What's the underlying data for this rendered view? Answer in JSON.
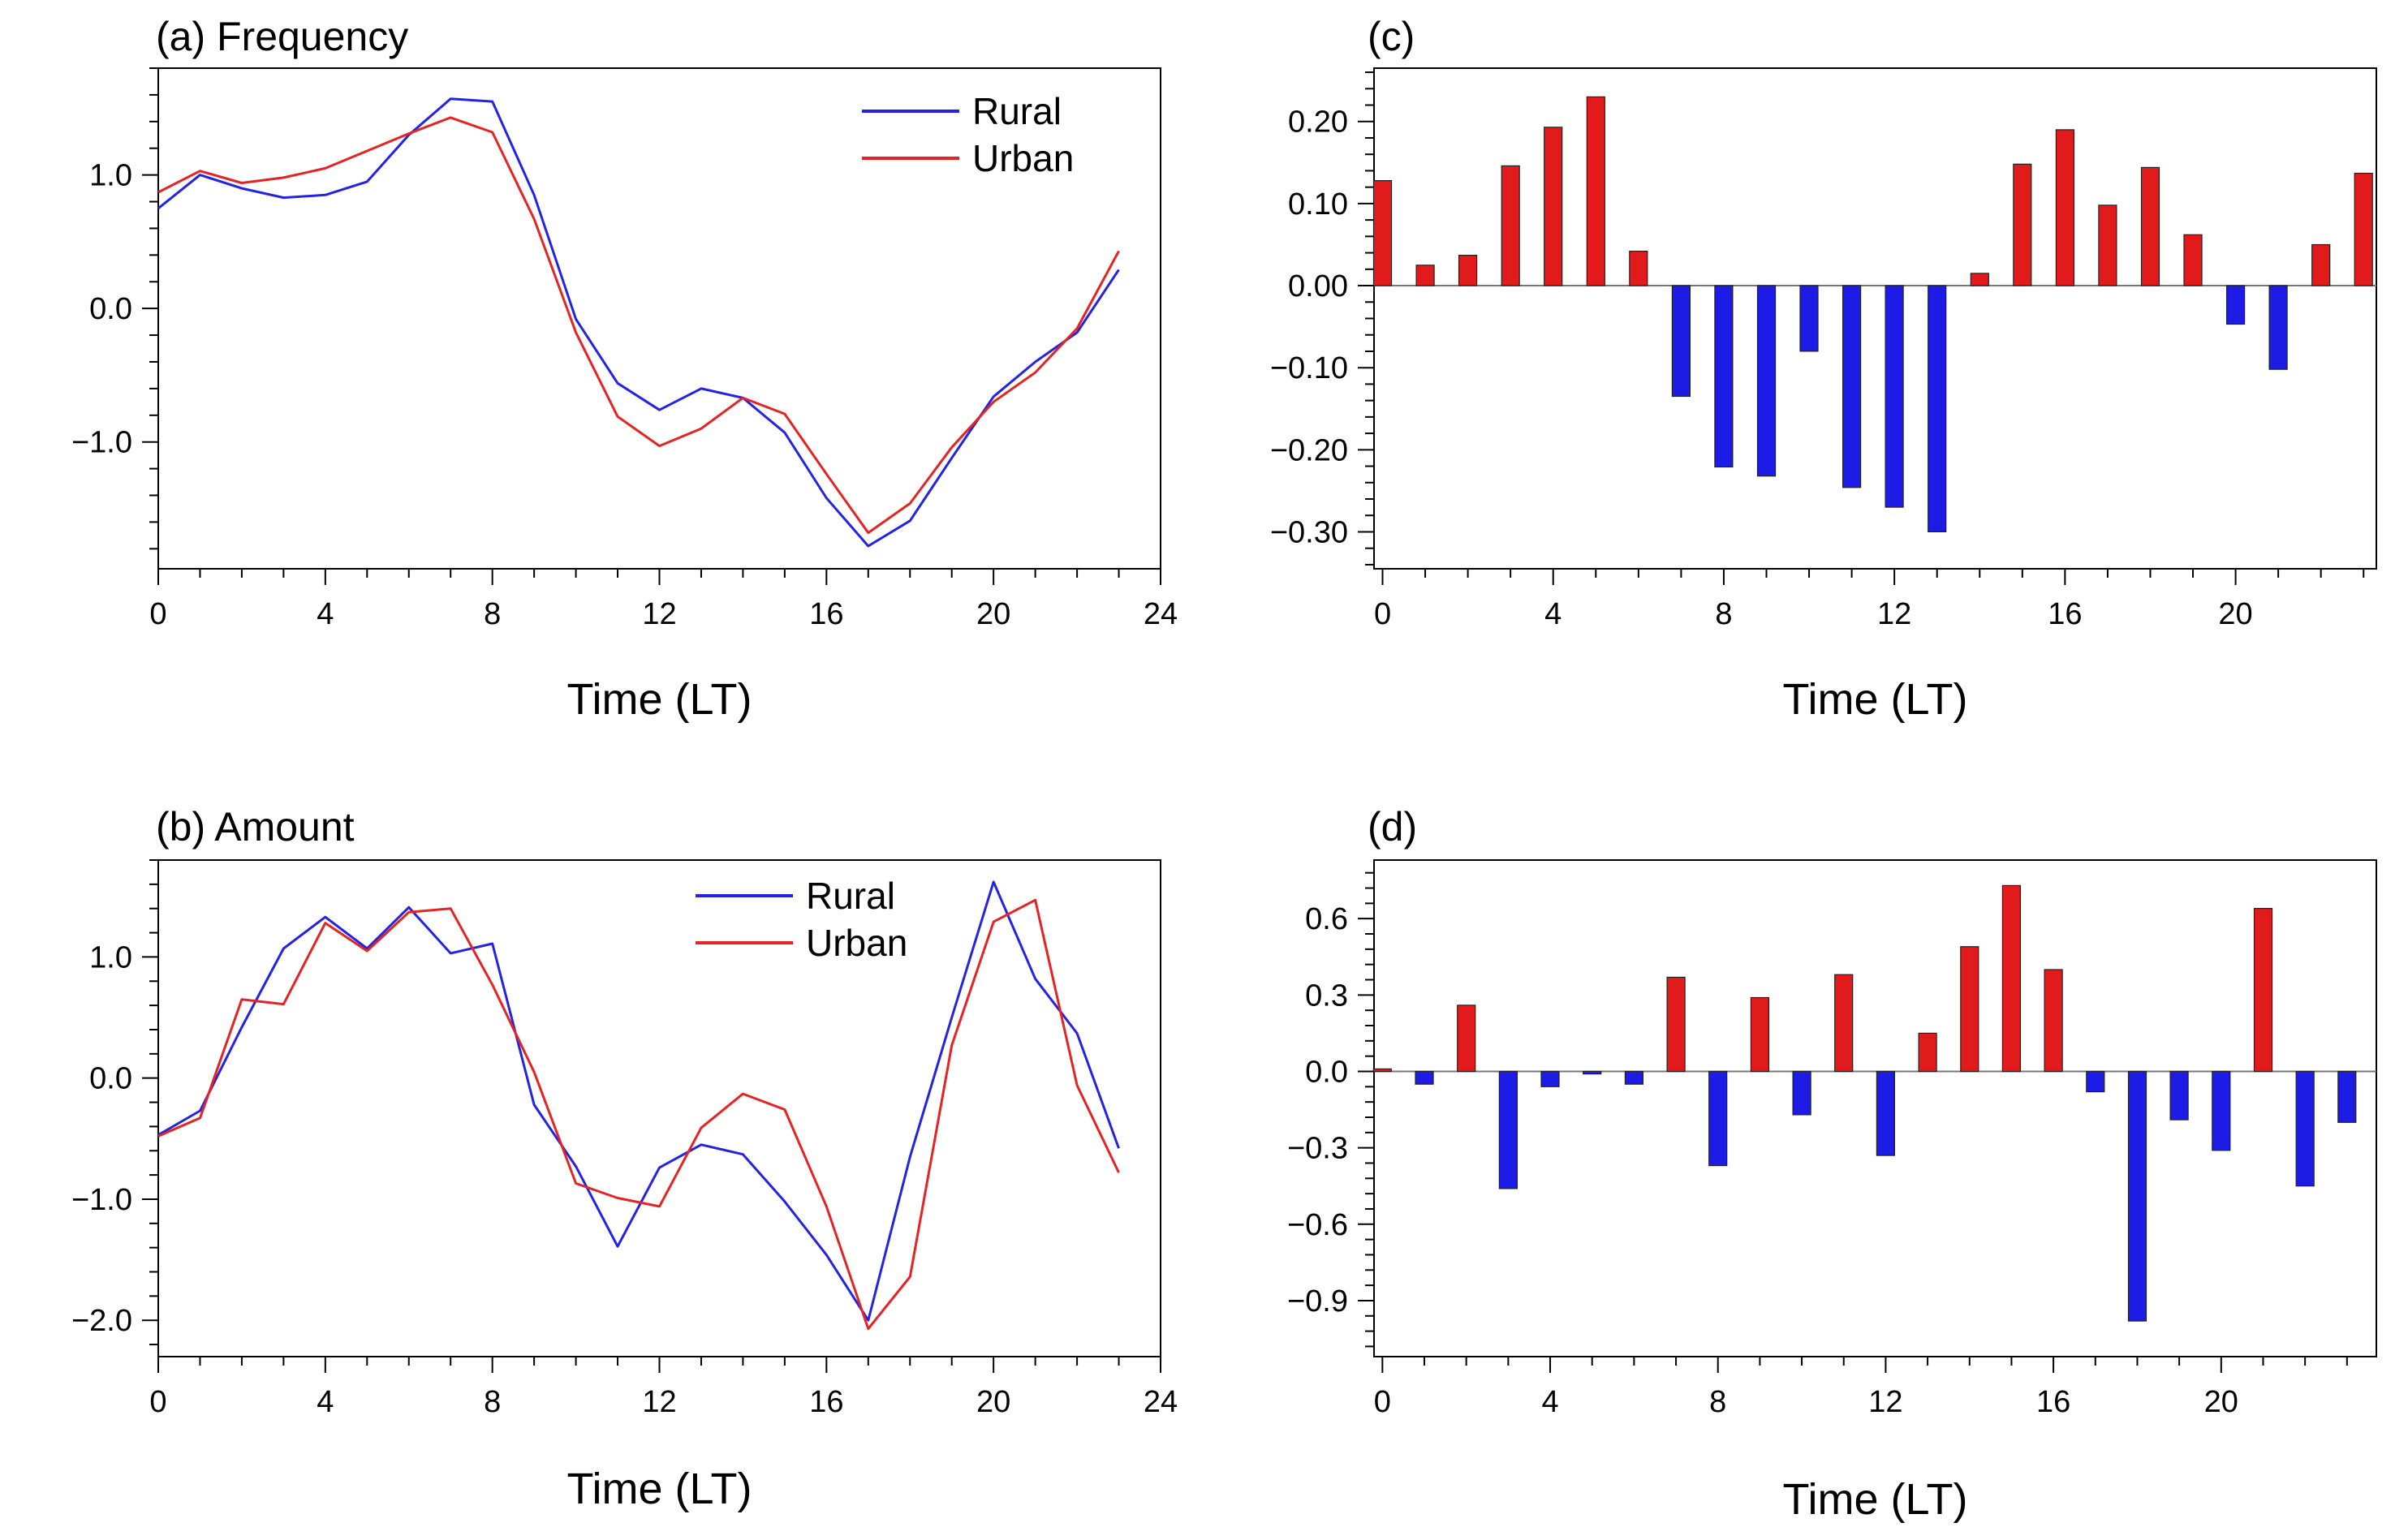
{
  "chart_data": [
    {
      "id": "a",
      "type": "line",
      "title": "(a) Frequency",
      "xlabel": "Time (LT)",
      "ylabel": "",
      "xlim": [
        0,
        24
      ],
      "ylim": [
        -1.95,
        1.8
      ],
      "xticks": [
        0,
        4,
        8,
        12,
        16,
        20,
        24
      ],
      "yticks": [
        1.0,
        0.0,
        -1.0
      ],
      "ytick_labels": [
        "1.0",
        "0.0",
        "−1.0"
      ],
      "x": [
        0,
        1,
        2,
        3,
        4,
        5,
        6,
        7,
        8,
        9,
        10,
        11,
        12,
        13,
        14,
        15,
        16,
        17,
        18,
        19,
        20,
        21,
        22,
        23
      ],
      "legend_position": "top-right",
      "series": [
        {
          "name": "Rural",
          "color": "#2323e6",
          "values": [
            0.75,
            1.0,
            0.9,
            0.83,
            0.85,
            0.95,
            1.3,
            1.57,
            1.55,
            0.85,
            -0.08,
            -0.56,
            -0.76,
            -0.6,
            -0.67,
            -0.93,
            -1.42,
            -1.78,
            -1.59,
            -1.12,
            -0.66,
            -0.4,
            -0.18,
            0.29
          ]
        },
        {
          "name": "Urban",
          "color": "#e62323",
          "values": [
            0.87,
            1.03,
            0.94,
            0.98,
            1.05,
            1.18,
            1.31,
            1.43,
            1.32,
            0.67,
            -0.18,
            -0.81,
            -1.03,
            -0.9,
            -0.67,
            -0.79,
            -1.24,
            -1.68,
            -1.46,
            -1.04,
            -0.7,
            -0.48,
            -0.15,
            0.43
          ]
        }
      ]
    },
    {
      "id": "b",
      "type": "line",
      "title": "(b) Amount",
      "xlabel": "Time (LT)",
      "ylabel": "",
      "xlim": [
        0,
        24
      ],
      "ylim": [
        -2.3,
        1.8
      ],
      "xticks": [
        0,
        4,
        8,
        12,
        16,
        20,
        24
      ],
      "yticks": [
        1.0,
        0.0,
        -1.0,
        -2.0
      ],
      "ytick_labels": [
        "1.0",
        "0.0",
        "−1.0",
        "−2.0"
      ],
      "x": [
        0,
        1,
        2,
        3,
        4,
        5,
        6,
        7,
        8,
        9,
        10,
        11,
        12,
        13,
        14,
        15,
        16,
        17,
        18,
        19,
        20,
        21,
        22,
        23
      ],
      "legend_position": "top-right",
      "series": [
        {
          "name": "Rural",
          "color": "#2323e6",
          "values": [
            -0.47,
            -0.27,
            0.42,
            1.07,
            1.33,
            1.07,
            1.41,
            1.03,
            1.11,
            -0.22,
            -0.73,
            -1.39,
            -0.74,
            -0.55,
            -0.63,
            -1.02,
            -1.46,
            -2.0,
            -0.65,
            0.5,
            1.62,
            0.82,
            0.37,
            -0.58
          ]
        },
        {
          "name": "Urban",
          "color": "#e62323",
          "values": [
            -0.48,
            -0.33,
            0.65,
            0.61,
            1.28,
            1.05,
            1.37,
            1.4,
            0.77,
            0.05,
            -0.87,
            -0.99,
            -1.06,
            -0.41,
            -0.13,
            -0.26,
            -1.06,
            -2.07,
            -1.64,
            0.27,
            1.29,
            1.47,
            -0.06,
            -0.78
          ]
        }
      ]
    },
    {
      "id": "c",
      "type": "bar",
      "title": "(c)",
      "xlabel": "Time (LT)",
      "ylabel": "",
      "xlim": [
        -0.2,
        23.3
      ],
      "ylim": [
        -0.345,
        0.265
      ],
      "xticks": [
        0,
        4,
        8,
        12,
        16,
        20
      ],
      "yticks": [
        0.2,
        0.1,
        0.0,
        -0.1,
        -0.2,
        -0.3
      ],
      "ytick_labels": [
        "0.20",
        "0.10",
        "0.00",
        "−0.10",
        "−0.20",
        "−0.30"
      ],
      "positive_color": "#e11b1b",
      "negative_color": "#1c1ce6",
      "categories": [
        0,
        1,
        2,
        3,
        4,
        5,
        6,
        7,
        8,
        9,
        10,
        11,
        12,
        13,
        14,
        15,
        16,
        17,
        18,
        19,
        20,
        21,
        22,
        23
      ],
      "values": [
        0.128,
        0.025,
        0.037,
        0.146,
        0.193,
        0.23,
        0.042,
        -0.135,
        -0.221,
        -0.232,
        -0.08,
        -0.246,
        -0.27,
        -0.3,
        0.015,
        0.148,
        0.19,
        0.098,
        0.144,
        0.062,
        -0.047,
        -0.102,
        0.05,
        0.137
      ]
    },
    {
      "id": "d",
      "type": "bar",
      "title": "(d)",
      "xlabel": "Time (LT)",
      "ylabel": "",
      "xlim": [
        -0.2,
        23.7
      ],
      "ylim": [
        -1.12,
        0.83
      ],
      "xticks": [
        0,
        4,
        8,
        12,
        16,
        20
      ],
      "yticks": [
        0.6,
        0.3,
        0.0,
        -0.3,
        -0.6,
        -0.9
      ],
      "ytick_labels": [
        "0.6",
        "0.3",
        "0.0",
        "−0.3",
        "−0.6",
        "−0.9"
      ],
      "positive_color": "#e11b1b",
      "negative_color": "#1c1ce6",
      "categories": [
        0,
        1,
        2,
        3,
        4,
        5,
        6,
        7,
        8,
        9,
        10,
        11,
        12,
        13,
        14,
        15,
        16,
        17,
        18,
        19,
        20,
        21,
        22,
        23
      ],
      "values": [
        0.01,
        -0.05,
        0.26,
        -0.46,
        -0.06,
        -0.01,
        -0.05,
        0.37,
        -0.37,
        0.29,
        -0.17,
        0.38,
        -0.33,
        0.15,
        0.49,
        0.73,
        0.4,
        -0.08,
        -0.98,
        -0.19,
        -0.31,
        0.64,
        -0.45,
        -0.2
      ]
    }
  ]
}
